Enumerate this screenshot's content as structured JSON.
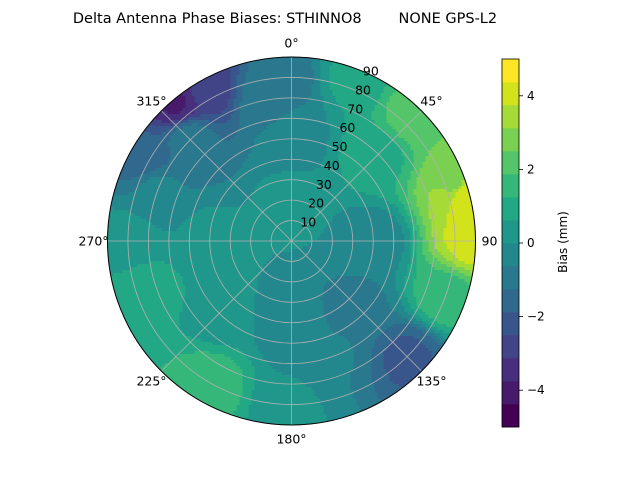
{
  "chart_data": {
    "type": "heatmap",
    "projection": "polar",
    "title": "Delta Antenna Phase Biases: STHINNO8        NONE GPS-L2",
    "angular_ticks": [
      "0°",
      "45°",
      "90",
      "135°",
      "180°",
      "225°",
      "270°",
      "315°"
    ],
    "angular_tick_values": [
      0,
      45,
      90,
      135,
      180,
      225,
      270,
      315
    ],
    "radial_ticks": [
      "10",
      "20",
      "30",
      "40",
      "50",
      "60",
      "70",
      "80",
      "90"
    ],
    "radial_tick_values": [
      10,
      20,
      30,
      40,
      50,
      60,
      70,
      80,
      90
    ],
    "radial_range": [
      0,
      90
    ],
    "direction": "clockwise",
    "zero_location": "north",
    "grid": true,
    "colorbar": {
      "label": "Bias (mm)",
      "ticks": [
        "−4",
        "−2",
        "0",
        "2",
        "4"
      ],
      "tick_values": [
        -4,
        -2,
        0,
        2,
        4
      ],
      "range": [
        -5,
        5
      ],
      "levels": [
        -5,
        -4.375,
        -3.75,
        -3.125,
        -2.5,
        -1.875,
        -1.25,
        -0.625,
        0,
        0.625,
        1.25,
        1.875,
        2.5,
        3.125,
        3.75,
        4.375,
        5
      ]
    },
    "colormap": "viridis",
    "bias_field_samples_mm": [
      {
        "azimuth": 0,
        "zenith": 20,
        "bias": 0.2
      },
      {
        "azimuth": 0,
        "zenith": 50,
        "bias": -0.3
      },
      {
        "azimuth": 0,
        "zenith": 80,
        "bias": -0.8
      },
      {
        "azimuth": 20,
        "zenith": 85,
        "bias": 0.8
      },
      {
        "azimuth": 45,
        "zenith": 60,
        "bias": 1.0
      },
      {
        "azimuth": 45,
        "zenith": 85,
        "bias": 2.3
      },
      {
        "azimuth": 70,
        "zenith": 85,
        "bias": 3.0
      },
      {
        "azimuth": 75,
        "zenith": 89,
        "bias": 4.2
      },
      {
        "azimuth": 90,
        "zenith": 40,
        "bias": -0.4
      },
      {
        "azimuth": 90,
        "zenith": 88,
        "bias": 4.0
      },
      {
        "azimuth": 110,
        "zenith": 80,
        "bias": 1.6
      },
      {
        "azimuth": 135,
        "zenith": 45,
        "bias": -0.8
      },
      {
        "azimuth": 135,
        "zenith": 80,
        "bias": -2.0
      },
      {
        "azimuth": 160,
        "zenith": 60,
        "bias": -0.6
      },
      {
        "azimuth": 180,
        "zenith": 40,
        "bias": -0.5
      },
      {
        "azimuth": 180,
        "zenith": 80,
        "bias": 0.1
      },
      {
        "azimuth": 210,
        "zenith": 80,
        "bias": 1.6
      },
      {
        "azimuth": 225,
        "zenith": 50,
        "bias": 0.3
      },
      {
        "azimuth": 250,
        "zenith": 75,
        "bias": 1.0
      },
      {
        "azimuth": 270,
        "zenith": 40,
        "bias": 0.2
      },
      {
        "azimuth": 270,
        "zenith": 80,
        "bias": 0.4
      },
      {
        "azimuth": 290,
        "zenith": 70,
        "bias": -0.5
      },
      {
        "azimuth": 300,
        "zenith": 85,
        "bias": -1.8
      },
      {
        "azimuth": 315,
        "zenith": 70,
        "bias": -0.9
      },
      {
        "azimuth": 320,
        "zenith": 88,
        "bias": -3.8
      },
      {
        "azimuth": 330,
        "zenith": 85,
        "bias": -3.0
      },
      {
        "azimuth": 350,
        "zenith": 70,
        "bias": -0.9
      }
    ]
  }
}
